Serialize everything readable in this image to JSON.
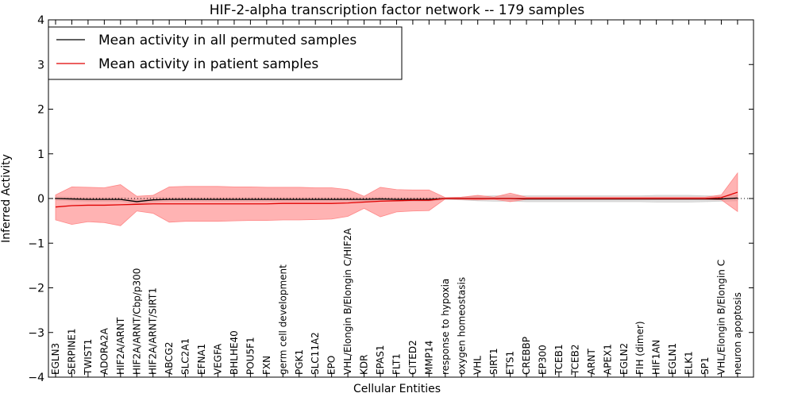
{
  "chart_data": {
    "type": "line",
    "title": "HIF-2-alpha transcription factor network -- 179 samples",
    "xlabel": "Cellular Entities",
    "ylabel": "Inferred Activity",
    "ylim": [
      -4,
      4
    ],
    "yticks": [
      -4,
      -3,
      -2,
      -1,
      0,
      1,
      2,
      3,
      4
    ],
    "legend_position": "top-left",
    "colors": {
      "permuted_line": "#000000",
      "permuted_band": "#c8c8c8",
      "patient_line": "#e00000",
      "patient_band": "#ff8080",
      "zero_line": "#000000"
    },
    "categories": [
      "EGLN3",
      "SERPINE1",
      "TWIST1",
      "ADORA2A",
      "HIF2A/ARNT",
      "HIF2A/ARNT/Cbp/p300",
      "HIF2A/ARNT/SIRT1",
      "ABCG2",
      "SLC2A1",
      "EFNA1",
      "VEGFA",
      "BHLHE40",
      "POU5F1",
      "FXN",
      "germ cell development",
      "PGK1",
      "SLC11A2",
      "EPO",
      "VHL/Elongin B/Elongin C/HIF2A",
      "KDR",
      "EPAS1",
      "FLT1",
      "CITED2",
      "MMP14",
      "response to hypoxia",
      "oxygen homeostasis",
      "VHL",
      "SIRT1",
      "ETS1",
      "CREBBP",
      "EP300",
      "TCEB1",
      "TCEB2",
      "ARNT",
      "APEX1",
      "EGLN2",
      "FIH (dimer)",
      "HIF1AN",
      "EGLN1",
      "ELK1",
      "SP1",
      "VHL/Elongin B/Elongin C",
      "neuron apoptosis"
    ],
    "series": [
      {
        "name": "Mean activity in all permuted samples",
        "values": [
          0.0,
          -0.01,
          -0.02,
          -0.02,
          -0.02,
          -0.07,
          -0.03,
          -0.02,
          -0.02,
          -0.02,
          -0.02,
          -0.02,
          -0.02,
          -0.02,
          -0.02,
          -0.02,
          -0.02,
          -0.02,
          -0.02,
          -0.02,
          -0.01,
          -0.02,
          -0.02,
          -0.02,
          0.0,
          0.0,
          0.0,
          0.0,
          0.0,
          -0.01,
          -0.01,
          -0.01,
          -0.01,
          -0.01,
          -0.01,
          -0.01,
          -0.01,
          -0.01,
          -0.01,
          -0.01,
          -0.01,
          -0.01,
          0.01
        ],
        "lower": [
          -0.04,
          -0.05,
          -0.06,
          -0.06,
          -0.06,
          -0.12,
          -0.08,
          -0.06,
          -0.06,
          -0.06,
          -0.06,
          -0.06,
          -0.06,
          -0.06,
          -0.06,
          -0.06,
          -0.06,
          -0.06,
          -0.06,
          -0.06,
          -0.05,
          -0.06,
          -0.06,
          -0.06,
          -0.02,
          -0.03,
          -0.05,
          -0.06,
          -0.06,
          -0.07,
          -0.07,
          -0.07,
          -0.07,
          -0.07,
          -0.07,
          -0.07,
          -0.07,
          -0.08,
          -0.08,
          -0.08,
          -0.07,
          -0.06,
          -0.05
        ],
        "upper": [
          0.04,
          0.03,
          0.02,
          0.02,
          0.02,
          -0.02,
          0.02,
          0.02,
          0.02,
          0.02,
          0.02,
          0.02,
          0.02,
          0.02,
          0.02,
          0.02,
          0.02,
          0.02,
          0.02,
          0.02,
          0.03,
          0.02,
          0.02,
          0.02,
          0.02,
          0.03,
          0.05,
          0.06,
          0.06,
          0.06,
          0.06,
          0.06,
          0.06,
          0.06,
          0.06,
          0.06,
          0.06,
          0.07,
          0.07,
          0.07,
          0.06,
          0.05,
          0.07
        ]
      },
      {
        "name": "Mean activity in patient samples",
        "values": [
          -0.19,
          -0.16,
          -0.15,
          -0.15,
          -0.14,
          -0.13,
          -0.12,
          -0.12,
          -0.12,
          -0.12,
          -0.12,
          -0.12,
          -0.12,
          -0.12,
          -0.11,
          -0.11,
          -0.11,
          -0.11,
          -0.1,
          -0.08,
          -0.06,
          -0.05,
          -0.04,
          -0.04,
          0.0,
          0.0,
          0.0,
          0.0,
          0.0,
          0.0,
          0.0,
          0.0,
          0.0,
          0.0,
          0.0,
          0.0,
          0.0,
          0.0,
          0.0,
          0.0,
          0.0,
          0.02,
          0.14
        ],
        "lower": [
          -0.48,
          -0.58,
          -0.52,
          -0.54,
          -0.61,
          -0.28,
          -0.33,
          -0.53,
          -0.51,
          -0.51,
          -0.51,
          -0.5,
          -0.49,
          -0.49,
          -0.48,
          -0.48,
          -0.47,
          -0.46,
          -0.4,
          -0.22,
          -0.41,
          -0.3,
          -0.28,
          -0.27,
          -0.01,
          -0.02,
          -0.03,
          -0.02,
          -0.07,
          -0.02,
          -0.02,
          -0.02,
          -0.02,
          -0.02,
          -0.02,
          -0.02,
          -0.02,
          -0.02,
          -0.02,
          -0.02,
          -0.02,
          -0.03,
          -0.29
        ],
        "upper": [
          0.08,
          0.26,
          0.25,
          0.24,
          0.31,
          0.05,
          0.07,
          0.26,
          0.27,
          0.27,
          0.27,
          0.26,
          0.26,
          0.25,
          0.25,
          0.25,
          0.24,
          0.24,
          0.2,
          0.05,
          0.25,
          0.2,
          0.19,
          0.19,
          0.02,
          0.03,
          0.07,
          0.03,
          0.12,
          0.03,
          0.03,
          0.03,
          0.03,
          0.03,
          0.03,
          0.03,
          0.03,
          0.03,
          0.03,
          0.03,
          0.03,
          0.08,
          0.57
        ]
      }
    ]
  }
}
